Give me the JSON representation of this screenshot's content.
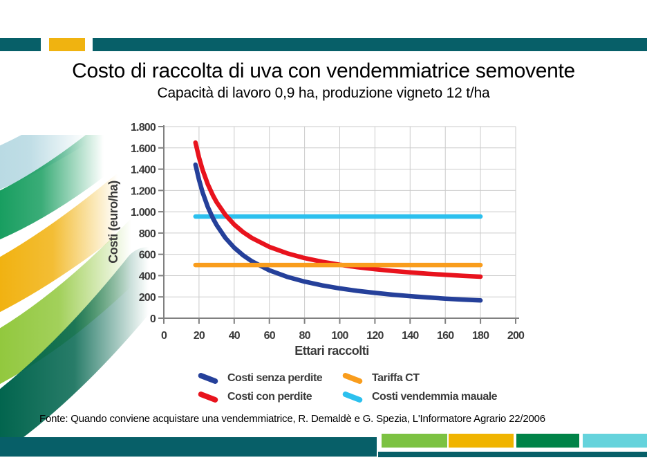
{
  "header": {
    "title": "Costo di raccolta di uva con vendemmiatrice semovente",
    "subtitle": "Capacità di lavoro 0,9 ha, produzione vigneto 12 t/ha"
  },
  "footer": {
    "source": "Fonte: Quando conviene acquistare una vendemmiatrice, R. Demaldè e G. Spezia, L'Informatore Agrario 22/2006"
  },
  "colors": {
    "teal": "#075f68",
    "gold": "#f0b310",
    "block_light_green": "#7cc242",
    "block_gold": "#f0b400",
    "block_dark_green": "#008348",
    "block_cyan": "#65d3dc",
    "swoosh_pale_blue": "#b9dae3",
    "swoosh_green": "#189e60",
    "swoosh_gold": "#f1b211",
    "swoosh_light_green": "#92c83e",
    "swoosh_teal": "#02654e",
    "grid": "#cbcbcb",
    "axis": "#808080",
    "tick_text": "#3b3b3b"
  },
  "chart_data": {
    "type": "line",
    "title": "Costo di raccolta di uva con vendemmiatrice semovente",
    "xlabel": "Ettari raccolti",
    "ylabel": "Costi (euro/ha)",
    "xlim": [
      0,
      200
    ],
    "ylim": [
      0,
      1800
    ],
    "grid": true,
    "legend_position": "bottom",
    "x_tick_values": [
      0,
      20,
      40,
      60,
      80,
      100,
      120,
      140,
      160,
      180,
      200
    ],
    "x_ticks": [
      "0",
      "20",
      "40",
      "60",
      "80",
      "100",
      "120",
      "140",
      "160",
      "180",
      "200"
    ],
    "y_tick_values": [
      0,
      200,
      400,
      600,
      800,
      1000,
      1200,
      1400,
      1600,
      1800
    ],
    "y_ticks": [
      "0",
      "200",
      "400",
      "600",
      "800",
      "1.000",
      "1.200",
      "1.400",
      "1.600",
      "1.800"
    ],
    "x": [
      18,
      20,
      22,
      25,
      28,
      30,
      35,
      40,
      45,
      50,
      60,
      70,
      80,
      90,
      100,
      110,
      120,
      130,
      140,
      150,
      160,
      170,
      180
    ],
    "series": [
      {
        "name": "Costi senza perdite",
        "color": "#25409a",
        "values": [
          1442,
          1300,
          1184,
          1045,
          936,
          875,
          754,
          663,
          592,
          535,
          450,
          389,
          344,
          308,
          280,
          257,
          238,
          221,
          207,
          195,
          184,
          175,
          167
        ]
      },
      {
        "name": "Costi con perdite",
        "color": "#e8131d",
        "values": [
          1650,
          1510,
          1395,
          1258,
          1150,
          1090,
          970,
          880,
          810,
          754,
          670,
          610,
          565,
          530,
          502,
          479,
          460,
          444,
          430,
          418,
          408,
          398,
          390
        ]
      },
      {
        "name": "Tariffa CT",
        "color": "#f99d1d",
        "values": [
          500,
          500,
          500,
          500,
          500,
          500,
          500,
          500,
          500,
          500,
          500,
          500,
          500,
          500,
          500,
          500,
          500,
          500,
          500,
          500,
          500,
          500,
          500
        ]
      },
      {
        "name": "Costi vendemmia mauale",
        "color": "#2cc0ee",
        "values": [
          955,
          955,
          955,
          955,
          955,
          955,
          955,
          955,
          955,
          955,
          955,
          955,
          955,
          955,
          955,
          955,
          955,
          955,
          955,
          955,
          955,
          955,
          955
        ]
      }
    ]
  }
}
